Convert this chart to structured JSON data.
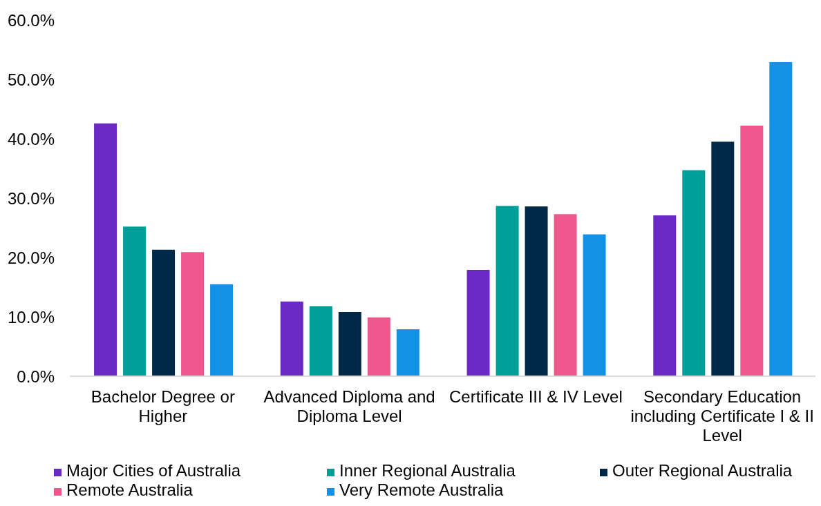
{
  "chart_data": {
    "type": "bar",
    "categories": [
      "Bachelor Degree or Higher",
      "Advanced Diploma and Diploma Level",
      "Certificate III & IV Level",
      "Secondary Education including Certificate I & II Level"
    ],
    "series": [
      {
        "name": "Major Cities of Australia",
        "color": "#6a29c4",
        "values": [
          42.6,
          12.6,
          17.9,
          27.1
        ]
      },
      {
        "name": "Inner Regional Australia",
        "color": "#009e98",
        "values": [
          25.2,
          11.8,
          28.7,
          34.7
        ]
      },
      {
        "name": "Outer Regional Australia",
        "color": "#022848",
        "values": [
          21.3,
          10.8,
          28.6,
          39.5
        ]
      },
      {
        "name": "Remote Australia",
        "color": "#ee578b",
        "values": [
          20.9,
          9.9,
          27.3,
          42.2
        ]
      },
      {
        "name": "Very Remote Australia",
        "color": "#1391e6",
        "values": [
          15.5,
          7.9,
          23.9,
          52.9
        ]
      }
    ],
    "ylim": [
      0,
      60
    ],
    "yticks": [
      {
        "value": 0,
        "label": "0.0%"
      },
      {
        "value": 10,
        "label": "10.0%"
      },
      {
        "value": 20,
        "label": "20.0%"
      },
      {
        "value": 30,
        "label": "30.0%"
      },
      {
        "value": 40,
        "label": "40.0%"
      },
      {
        "value": 50,
        "label": "50.0%"
      },
      {
        "value": 60,
        "label": "60.0%"
      }
    ],
    "legend": "bottom"
  }
}
